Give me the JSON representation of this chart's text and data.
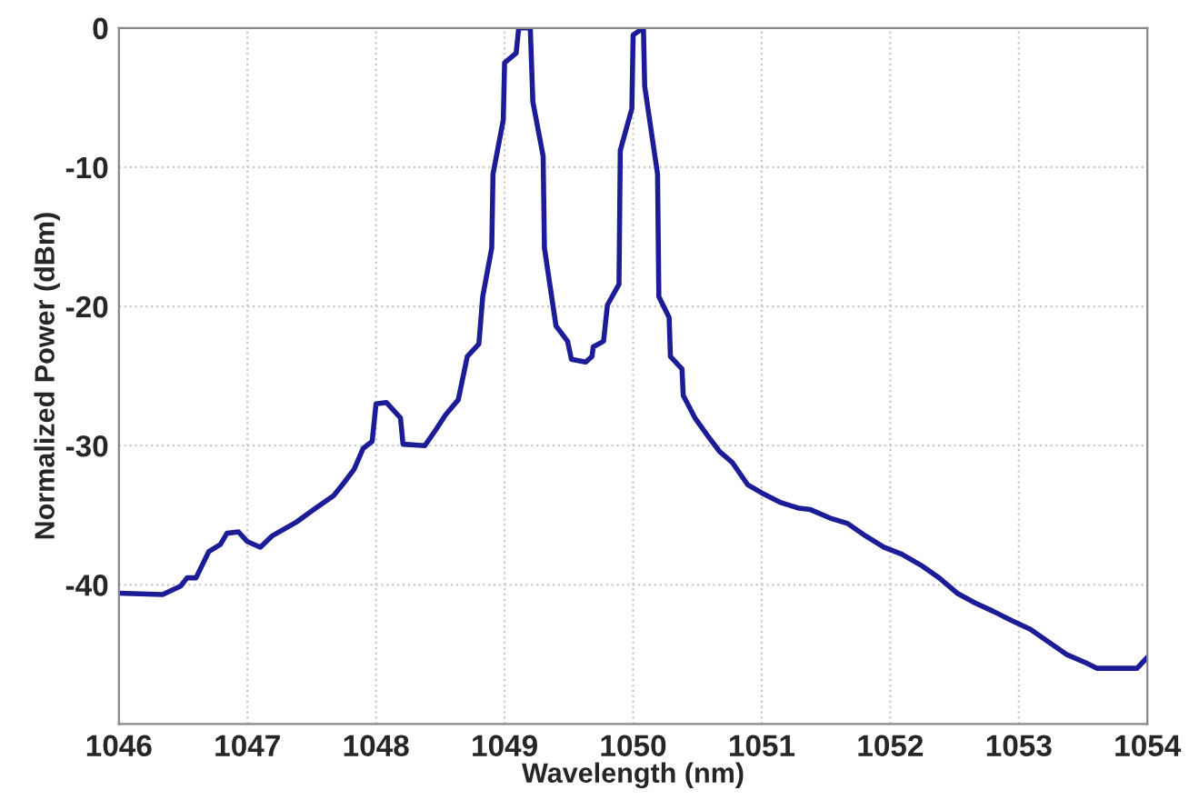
{
  "chart_data": {
    "type": "line",
    "xlabel": "Wavelength (nm)",
    "ylabel": "Normalized Power (dBm)",
    "xlim": [
      1046,
      1054
    ],
    "xticks": [
      1046,
      1047,
      1048,
      1049,
      1050,
      1051,
      1052,
      1053,
      1054
    ],
    "ylim": [
      -50,
      0
    ],
    "yticks": [
      -40,
      -30,
      -20,
      -10,
      0
    ],
    "grid": true,
    "legend": false,
    "marker": "none",
    "line_style": "solid",
    "series": [
      {
        "color": "#1c1c96",
        "x": [
          1046,
          1046.34,
          1046.48,
          1046.53,
          1046.6,
          1046.7,
          1046.79,
          1046.84,
          1046.93,
          1047.0,
          1047.1,
          1047.19,
          1047.38,
          1047.53,
          1047.67,
          1047.74,
          1047.83,
          1047.9,
          1047.97,
          1048.0,
          1048.08,
          1048.19,
          1048.21,
          1048.38,
          1048.47,
          1048.54,
          1048.64,
          1048.71,
          1048.8,
          1048.83,
          1048.9,
          1048.91,
          1048.99,
          1049.0,
          1049.09,
          1049.11,
          1049.2,
          1049.22,
          1049.3,
          1049.31,
          1049.4,
          1049.49,
          1049.52,
          1049.63,
          1049.68,
          1049.69,
          1049.77,
          1049.8,
          1049.89,
          1049.9,
          1049.99,
          1050.0,
          1050.08,
          1050.09,
          1050.19,
          1050.2,
          1050.28,
          1050.29,
          1050.38,
          1050.39,
          1050.48,
          1050.58,
          1050.67,
          1050.77,
          1050.89,
          1051.0,
          1051.15,
          1051.29,
          1051.38,
          1051.53,
          1051.67,
          1051.81,
          1051.95,
          1052.09,
          1052.24,
          1052.38,
          1052.52,
          1052.66,
          1052.8,
          1052.95,
          1053.09,
          1053.23,
          1053.37,
          1053.52,
          1053.61,
          1053.92,
          1054.0
        ],
        "values": [
          -40.6,
          -40.7,
          -40.1,
          -39.5,
          -39.5,
          -37.6,
          -37.1,
          -36.3,
          -36.2,
          -36.9,
          -37.3,
          -36.5,
          -35.5,
          -34.5,
          -33.6,
          -32.8,
          -31.7,
          -30.2,
          -29.7,
          -27.0,
          -26.9,
          -28.0,
          -29.9,
          -30.0,
          -28.8,
          -27.8,
          -26.7,
          -23.6,
          -22.7,
          -19.3,
          -15.8,
          -10.5,
          -6.6,
          -2.5,
          -1.8,
          0,
          0,
          -5.3,
          -9.2,
          -15.8,
          -21.4,
          -22.5,
          -23.8,
          -24.0,
          -23.6,
          -22.9,
          -22.5,
          -19.9,
          -18.4,
          -8.8,
          -5.8,
          -0.5,
          0,
          -4.2,
          -10.5,
          -19.3,
          -20.8,
          -23.6,
          -24.5,
          -26.4,
          -28.0,
          -29.3,
          -30.4,
          -31.2,
          -32.8,
          -33.4,
          -34.1,
          -34.5,
          -34.6,
          -35.2,
          -35.6,
          -36.5,
          -37.3,
          -37.8,
          -38.6,
          -39.5,
          -40.6,
          -41.3,
          -41.9,
          -42.6,
          -43.2,
          -44.1,
          -45.0,
          -45.6,
          -46.0,
          -46.0,
          -45.2
        ]
      }
    ]
  }
}
